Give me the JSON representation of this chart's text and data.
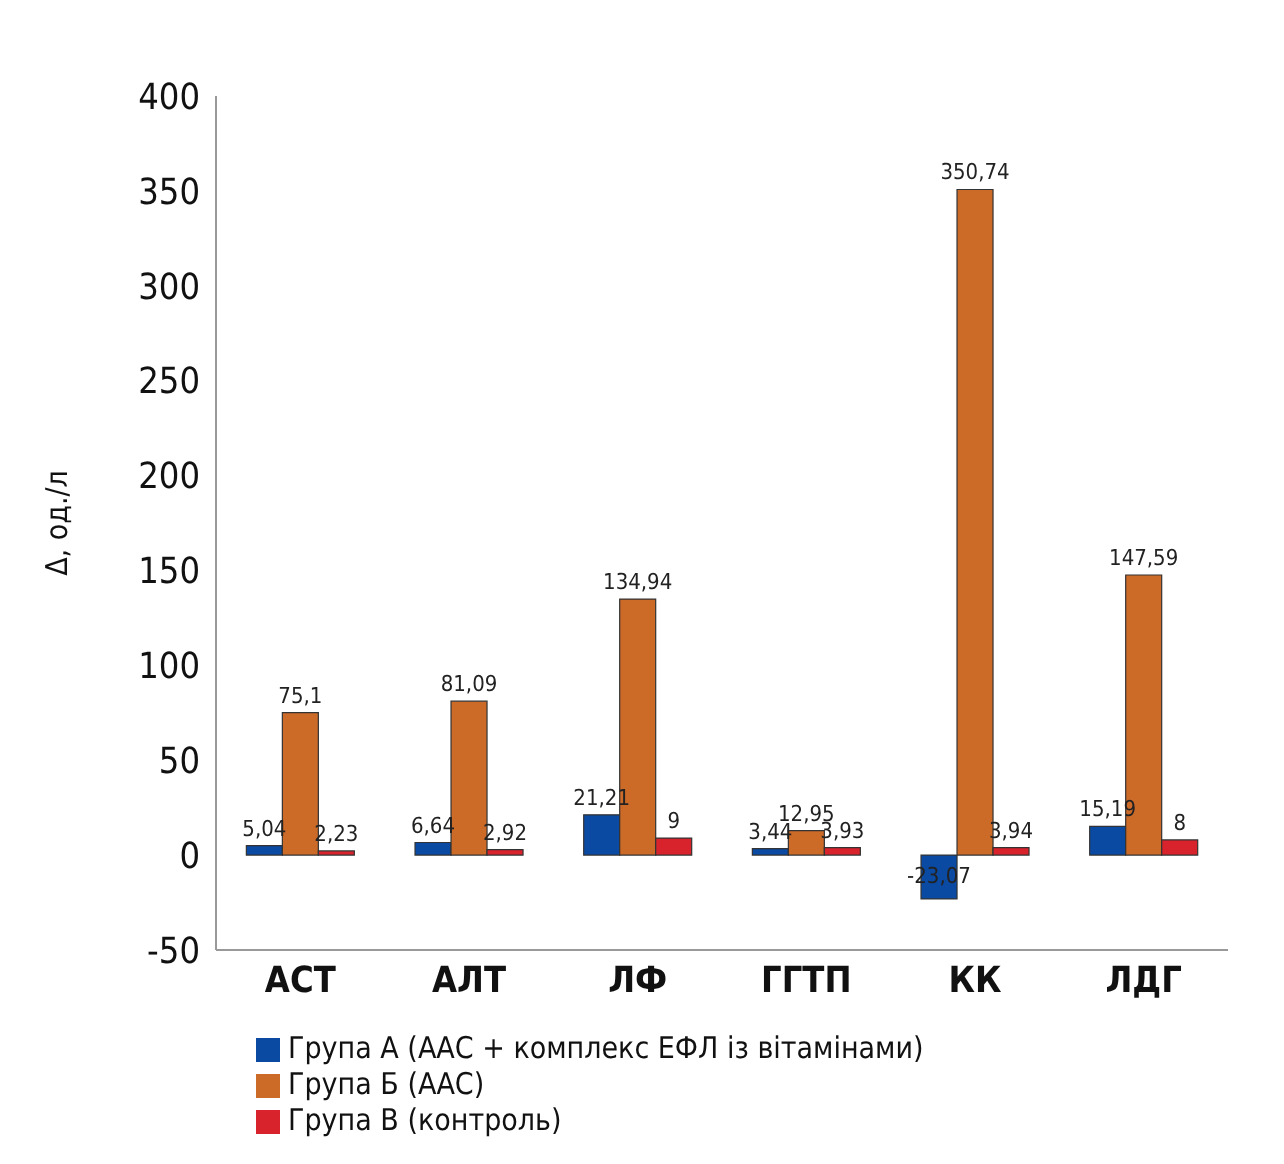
{
  "chart_data": {
    "type": "bar",
    "ylabel": "Δ, од./л",
    "categories": [
      "АСТ",
      "АЛТ",
      "ЛФ",
      "ГГТП",
      "КК",
      "ЛДГ"
    ],
    "series": [
      {
        "name": "Група А (ААС + комплекс ЕФЛ із вітамінами)",
        "color": "#0b4aa2",
        "values": [
          5.04,
          6.64,
          21.21,
          3.44,
          -23.07,
          15.19
        ],
        "value_labels": [
          "5,04",
          "6,64",
          "21,21",
          "3,44",
          "-23,07",
          "15,19"
        ]
      },
      {
        "name": "Група Б (ААС)",
        "color": "#cc6a28",
        "values": [
          75.1,
          81.09,
          134.94,
          12.95,
          350.74,
          147.59
        ],
        "value_labels": [
          "75,1",
          "81,09",
          "134,94",
          "12,95",
          "350,74",
          "147,59"
        ]
      },
      {
        "name": "Група В (контроль)",
        "color": "#d8222c",
        "values": [
          2.23,
          2.92,
          9,
          3.93,
          3.94,
          8
        ],
        "value_labels": [
          "2,23",
          "2,92",
          "9",
          "3,93",
          "3,94",
          "8"
        ]
      }
    ],
    "ylim": [
      -50,
      400
    ],
    "yticks": [
      -50,
      0,
      50,
      100,
      150,
      200,
      250,
      300,
      350,
      400
    ],
    "grid": false,
    "legend": "bottom"
  }
}
